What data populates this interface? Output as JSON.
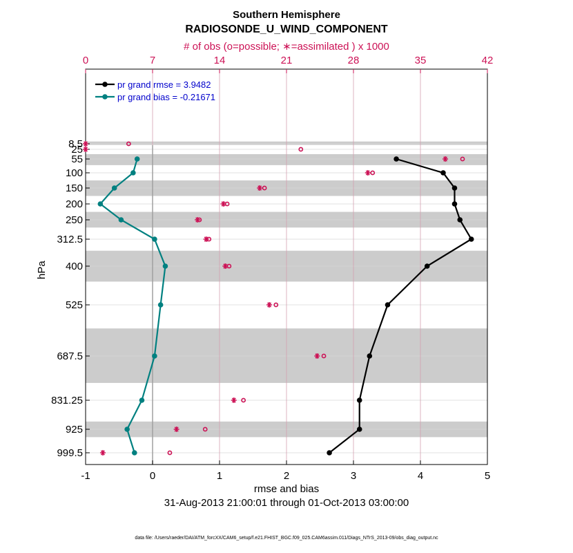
{
  "chart_data": {
    "type": "line",
    "title_line1": "Southern Hemisphere",
    "title_line2": "RADIOSONDE_U_WIND_COMPONENT",
    "top_axis_title": "# of obs (o=possible; ∗=assimilated ) x 1000",
    "xlabel": "rmse and bias",
    "date_range": "31-Aug-2013 21:00:01 through 01-Oct-2013 03:00:00",
    "ylabel": "hPa",
    "xlim": [
      -1,
      5
    ],
    "x_ticks": [
      "-1",
      "0",
      "1",
      "2",
      "3",
      "4",
      "5"
    ],
    "top_xlim": [
      0,
      42
    ],
    "top_ticks": [
      "0",
      "7",
      "14",
      "21",
      "28",
      "35",
      "42"
    ],
    "levels": [
      "8.5",
      "25",
      "55",
      "100",
      "150",
      "200",
      "250",
      "312.5",
      "400",
      "525",
      "687.5",
      "831.25",
      "925",
      "999.5"
    ],
    "level_values": [
      8.5,
      25,
      55,
      100,
      150,
      200,
      250,
      312.5,
      400,
      525,
      687.5,
      831.25,
      925,
      999.5
    ],
    "series": [
      {
        "name": "pr grand rmse = 3.9482",
        "color": "#000000",
        "points": [
          {
            "level": 55,
            "value": 3.64
          },
          {
            "level": 100,
            "value": 4.34
          },
          {
            "level": 150,
            "value": 4.51
          },
          {
            "level": 200,
            "value": 4.51
          },
          {
            "level": 250,
            "value": 4.59
          },
          {
            "level": 312.5,
            "value": 4.76
          },
          {
            "level": 400,
            "value": 4.1
          },
          {
            "level": 525,
            "value": 3.51
          },
          {
            "level": 687.5,
            "value": 3.24
          },
          {
            "level": 831.25,
            "value": 3.09
          },
          {
            "level": 925,
            "value": 3.09
          },
          {
            "level": 999.5,
            "value": 2.64
          }
        ]
      },
      {
        "name": "pr grand bias = -0.21671",
        "color": "#008080",
        "points": [
          {
            "level": 55,
            "value": -0.23
          },
          {
            "level": 100,
            "value": -0.29
          },
          {
            "level": 150,
            "value": -0.57
          },
          {
            "level": 200,
            "value": -0.78
          },
          {
            "level": 250,
            "value": -0.47
          },
          {
            "level": 312.5,
            "value": 0.03
          },
          {
            "level": 400,
            "value": 0.19
          },
          {
            "level": 525,
            "value": 0.12
          },
          {
            "level": 687.5,
            "value": 0.03
          },
          {
            "level": 831.25,
            "value": -0.16
          },
          {
            "level": 925,
            "value": -0.38
          },
          {
            "level": 999.5,
            "value": -0.27
          }
        ]
      }
    ],
    "obs_possible": [
      {
        "level": 8.5,
        "count": 4.5
      },
      {
        "level": 25,
        "count": 22.5
      },
      {
        "level": 55,
        "count": 39.4
      },
      {
        "level": 100,
        "count": 30.0
      },
      {
        "level": 150,
        "count": 18.7
      },
      {
        "level": 200,
        "count": 14.8
      },
      {
        "level": 250,
        "count": 11.9
      },
      {
        "level": 312.5,
        "count": 12.9
      },
      {
        "level": 400,
        "count": 15.0
      },
      {
        "level": 525,
        "count": 19.9
      },
      {
        "level": 687.5,
        "count": 24.9
      },
      {
        "level": 831.25,
        "count": 16.5
      },
      {
        "level": 925,
        "count": 12.5
      },
      {
        "level": 999.5,
        "count": 8.8
      }
    ],
    "obs_assimilated": [
      {
        "level": 8.5,
        "count": 0.0
      },
      {
        "level": 25,
        "count": 0.0
      },
      {
        "level": 55,
        "count": 37.6
      },
      {
        "level": 100,
        "count": 29.5
      },
      {
        "level": 150,
        "count": 18.2
      },
      {
        "level": 200,
        "count": 14.4
      },
      {
        "level": 250,
        "count": 11.7
      },
      {
        "level": 312.5,
        "count": 12.6
      },
      {
        "level": 400,
        "count": 14.6
      },
      {
        "level": 525,
        "count": 19.2
      },
      {
        "level": 687.5,
        "count": 24.2
      },
      {
        "level": 831.25,
        "count": 15.5
      },
      {
        "level": 925,
        "count": 9.5
      },
      {
        "level": 999.5,
        "count": 1.8
      }
    ],
    "shaded_layers": [
      [
        5,
        12
      ],
      [
        40,
        75
      ],
      [
        125,
        175
      ],
      [
        225,
        275
      ],
      [
        350,
        450
      ],
      [
        600,
        775
      ],
      [
        900,
        950
      ]
    ],
    "grid": true,
    "legend_position": "top-left"
  },
  "footer": "data file: /Users/raeder/DAI/ATM_forcXX/CAM6_setup/f.e21.FHIST_BGC.f09_025.CAM6assim.011/Diags_NTrS_2013-09/obs_diag_output.nc",
  "colors": {
    "rmse": "#000000",
    "bias": "#008080",
    "obs": "#cc1155",
    "legend_text": "#0000cc",
    "shade": "#cccccc"
  }
}
